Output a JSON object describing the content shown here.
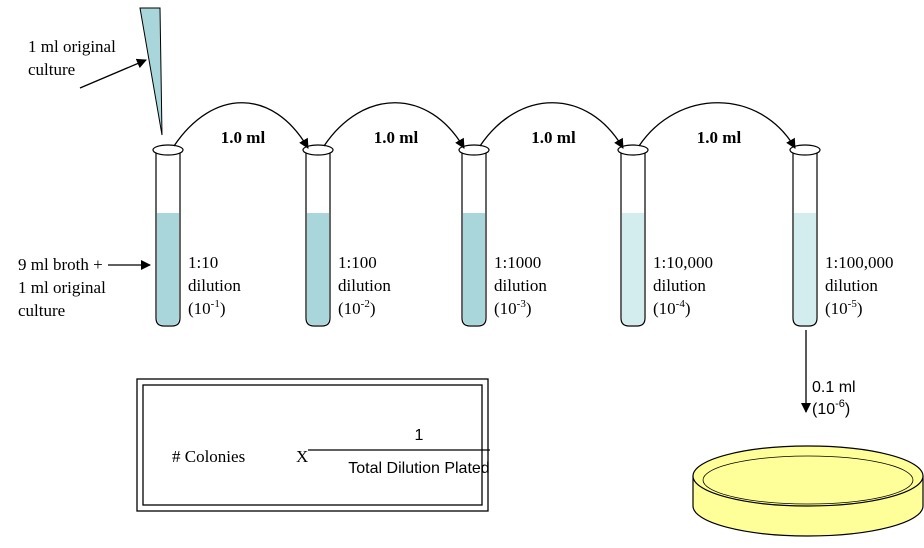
{
  "pipette_label": [
    "1 ml original",
    "culture"
  ],
  "broth_label": [
    "9 ml broth +",
    "1 ml original",
    "culture"
  ],
  "transfers": [
    "1.0 ml",
    "1.0 ml",
    "1.0 ml",
    "1.0 ml"
  ],
  "tubes": [
    {
      "ratio": "1:10",
      "word": "dilution",
      "open": "(10",
      "exp": "-1",
      "close": ")",
      "color": "#a9d6da"
    },
    {
      "ratio": "1:100",
      "word": "dilution",
      "open": "(10",
      "exp": "-2",
      "close": ")",
      "color": "#a9d6da"
    },
    {
      "ratio": "1:1000",
      "word": "dilution",
      "open": "(10",
      "exp": "-3",
      "close": ")",
      "color": "#a9d6da"
    },
    {
      "ratio": "1:10,000",
      "word": "dilution",
      "open": "(10",
      "exp": "-4",
      "close": ")",
      "color": "#d3ecee"
    },
    {
      "ratio": "1:100,000",
      "word": "dilution",
      "open": "(10",
      "exp": "-5",
      "close": ")",
      "color": "#d3ecee"
    }
  ],
  "plating": {
    "volume": "0.1 ml",
    "open": "(10",
    "exp": "-6",
    "close": ")"
  },
  "formula": {
    "left": "# Colonies",
    "times": "X",
    "numerator": "1",
    "denominator": "Total Dilution Plated"
  }
}
